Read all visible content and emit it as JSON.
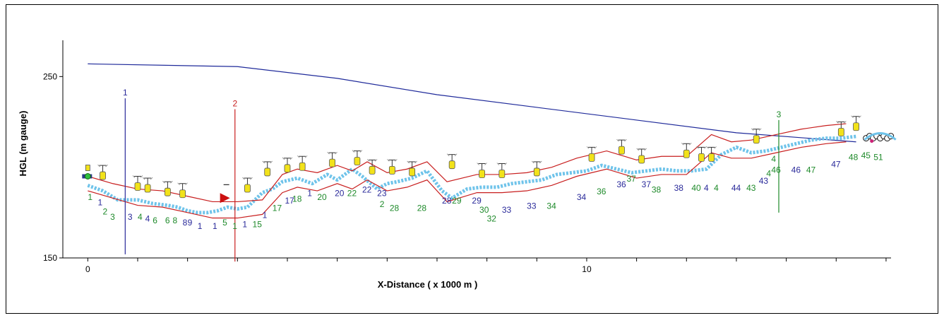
{
  "chart_data": {
    "type": "line",
    "xlabel": "X-Distance ( x 1000 m )",
    "ylabel": "HGL  (m gauge)",
    "xlim": [
      -0.5,
      16.1
    ],
    "ylim": [
      150,
      270
    ],
    "x_ticks": [
      0,
      10
    ],
    "y_ticks": [
      150,
      250
    ],
    "colors": {
      "hgl": "#1f2a9a",
      "profile": "#c81e1e",
      "pipe": "#6ec3ea",
      "label_blue": "#2a2a9a",
      "label_green": "#1e8a2a",
      "valve": "#f2e21a",
      "marker_red": "#cc1111"
    },
    "series": [
      {
        "name": "",
        "kind": "hgl",
        "x": [
          0,
          3,
          5,
          7,
          9,
          11,
          13,
          15.4
        ],
        "y": [
          257,
          255.5,
          249,
          240,
          233,
          226,
          219,
          214
        ]
      },
      {
        "name": "",
        "kind": "pipe",
        "x": [
          0,
          0.3,
          0.6,
          1.0,
          1.3,
          1.6,
          1.8,
          2.0,
          2.2,
          2.4,
          2.6,
          2.8,
          3.0,
          3.2,
          3.5,
          3.7,
          3.9,
          4.2,
          4.5,
          4.8,
          5.0,
          5.3,
          5.5,
          5.8,
          6.0,
          6.2,
          6.5,
          6.8,
          7.1,
          7.3,
          7.6,
          7.9,
          8.2,
          8.5,
          8.8,
          9.1,
          9.4,
          9.7,
          10.0,
          10.3,
          10.6,
          10.9,
          11.2,
          11.5,
          11.8,
          12.1,
          12.4,
          12.7,
          13.0,
          13.3,
          13.6,
          13.9,
          14.2,
          14.5,
          14.8,
          15.1,
          15.4
        ],
        "y": [
          190,
          187,
          182,
          182,
          180,
          179,
          178,
          176,
          175,
          175,
          176,
          178,
          177,
          178,
          186,
          188,
          192,
          194,
          191,
          196,
          193,
          199,
          195,
          188,
          191,
          192,
          194,
          198,
          187,
          183,
          188,
          189,
          189,
          191,
          192,
          193,
          196,
          197,
          198,
          201,
          199,
          197,
          198,
          199,
          198,
          198,
          199,
          207,
          211,
          208,
          209,
          211,
          213,
          215,
          216,
          216,
          217
        ]
      },
      {
        "name": "",
        "kind": "profile_upper",
        "x": [
          0,
          0.5,
          1.0,
          1.5,
          2.0,
          2.5,
          3.0,
          3.5,
          3.9,
          4.2,
          4.6,
          5.0,
          5.3,
          5.6,
          6.0,
          6.4,
          6.8,
          7.2,
          7.8,
          8.3,
          8.8,
          9.3,
          9.8,
          10.4,
          11.0,
          11.5,
          12.0,
          12.5,
          12.9,
          13.3,
          13.8,
          14.3,
          14.8,
          15.2
        ],
        "y": [
          195,
          191,
          188,
          187,
          184,
          181,
          181,
          182,
          196,
          199,
          197,
          201,
          198,
          203,
          197,
          199,
          203,
          192,
          196,
          196,
          197,
          200,
          205,
          209,
          204,
          206,
          206,
          218,
          214,
          215,
          218,
          221,
          223,
          224
        ]
      },
      {
        "name": "",
        "kind": "profile_lower",
        "x": [
          0,
          0.5,
          1.0,
          1.5,
          2.0,
          2.5,
          3.0,
          3.5,
          3.9,
          4.2,
          4.6,
          5.0,
          5.3,
          5.6,
          6.0,
          6.4,
          6.8,
          7.2,
          7.8,
          8.3,
          8.8,
          9.3,
          9.8,
          10.4,
          11.0,
          11.5,
          12.0,
          12.5,
          12.9,
          13.3,
          13.8,
          14.3,
          14.8,
          15.2
        ],
        "y": [
          187,
          183,
          179,
          178,
          175,
          172,
          172,
          174,
          186,
          189,
          187,
          191,
          188,
          193,
          187,
          189,
          193,
          181,
          186,
          186,
          187,
          190,
          195,
          199,
          194,
          196,
          196,
          208,
          205,
          205,
          208,
          211,
          213,
          214
        ]
      }
    ],
    "vertical_markers": [
      {
        "label": "1",
        "x": 0.75,
        "y_top": 238,
        "y_bottom": 152,
        "color": "#2a2a9a"
      },
      {
        "label": "2",
        "x": 2.95,
        "y_top": 232,
        "y_bottom": 148,
        "color": "#c81e1e"
      },
      {
        "label": "3",
        "x": 13.85,
        "y_top": 226,
        "y_bottom": 175,
        "color": "#1e8a2a"
      }
    ],
    "valves": [
      {
        "x": 0.3,
        "y": 194
      },
      {
        "x": 1.0,
        "y": 188
      },
      {
        "x": 1.2,
        "y": 187
      },
      {
        "x": 1.6,
        "y": 185
      },
      {
        "x": 1.9,
        "y": 184
      },
      {
        "x": 3.2,
        "y": 187
      },
      {
        "x": 3.6,
        "y": 196
      },
      {
        "x": 4.0,
        "y": 198
      },
      {
        "x": 4.3,
        "y": 199
      },
      {
        "x": 4.9,
        "y": 201
      },
      {
        "x": 5.4,
        "y": 202
      },
      {
        "x": 5.7,
        "y": 197
      },
      {
        "x": 6.1,
        "y": 197
      },
      {
        "x": 6.5,
        "y": 196
      },
      {
        "x": 7.3,
        "y": 200
      },
      {
        "x": 7.9,
        "y": 195
      },
      {
        "x": 8.3,
        "y": 195
      },
      {
        "x": 9.0,
        "y": 196
      },
      {
        "x": 10.1,
        "y": 204
      },
      {
        "x": 10.7,
        "y": 208
      },
      {
        "x": 11.1,
        "y": 203
      },
      {
        "x": 12.0,
        "y": 206
      },
      {
        "x": 12.3,
        "y": 204
      },
      {
        "x": 12.5,
        "y": 204
      },
      {
        "x": 13.4,
        "y": 214
      },
      {
        "x": 15.1,
        "y": 218
      },
      {
        "x": 15.4,
        "y": 221
      }
    ],
    "node_labels": [
      {
        "t": "1",
        "x": 0.0,
        "y": 182,
        "c": "g"
      },
      {
        "t": "1",
        "x": 0.2,
        "y": 179,
        "c": "b"
      },
      {
        "t": "2",
        "x": 0.3,
        "y": 174,
        "c": "g"
      },
      {
        "t": "3",
        "x": 0.45,
        "y": 171,
        "c": "g"
      },
      {
        "t": "3",
        "x": 0.8,
        "y": 171,
        "c": "b"
      },
      {
        "t": "4",
        "x": 1.0,
        "y": 171,
        "c": "g"
      },
      {
        "t": "4",
        "x": 1.15,
        "y": 170,
        "c": "b"
      },
      {
        "t": "6",
        "x": 1.3,
        "y": 169,
        "c": "g"
      },
      {
        "t": "6",
        "x": 1.55,
        "y": 169,
        "c": "g"
      },
      {
        "t": "8",
        "x": 1.7,
        "y": 169,
        "c": "g"
      },
      {
        "t": "8",
        "x": 1.9,
        "y": 168,
        "c": "b"
      },
      {
        "t": "9",
        "x": 2.0,
        "y": 168,
        "c": "b"
      },
      {
        "t": "1",
        "x": 2.2,
        "y": 166,
        "c": "b"
      },
      {
        "t": "1",
        "x": 2.5,
        "y": 166,
        "c": "b"
      },
      {
        "t": "5",
        "x": 2.7,
        "y": 168,
        "c": "g"
      },
      {
        "t": "1",
        "x": 2.9,
        "y": 166,
        "c": "g"
      },
      {
        "t": "1",
        "x": 3.1,
        "y": 167,
        "c": "b"
      },
      {
        "t": "15",
        "x": 3.3,
        "y": 167,
        "c": "g"
      },
      {
        "t": "1",
        "x": 3.5,
        "y": 172,
        "c": "b"
      },
      {
        "t": "17",
        "x": 3.7,
        "y": 176,
        "c": "g"
      },
      {
        "t": "17",
        "x": 3.95,
        "y": 180,
        "c": "b"
      },
      {
        "t": "18",
        "x": 4.1,
        "y": 181,
        "c": "g"
      },
      {
        "t": "1",
        "x": 4.4,
        "y": 184,
        "c": "b"
      },
      {
        "t": "20",
        "x": 4.6,
        "y": 182,
        "c": "g"
      },
      {
        "t": "20",
        "x": 4.95,
        "y": 184,
        "c": "b"
      },
      {
        "t": "22",
        "x": 5.2,
        "y": 184,
        "c": "g"
      },
      {
        "t": "22",
        "x": 5.5,
        "y": 186,
        "c": "b"
      },
      {
        "t": "23",
        "x": 5.8,
        "y": 184,
        "c": "b"
      },
      {
        "t": "2",
        "x": 5.85,
        "y": 178,
        "c": "g"
      },
      {
        "t": "28",
        "x": 6.05,
        "y": 176,
        "c": "g"
      },
      {
        "t": "28",
        "x": 6.6,
        "y": 176,
        "c": "g"
      },
      {
        "t": "28",
        "x": 7.1,
        "y": 180,
        "c": "b"
      },
      {
        "t": "29",
        "x": 7.3,
        "y": 180,
        "c": "g"
      },
      {
        "t": "29",
        "x": 7.7,
        "y": 180,
        "c": "b"
      },
      {
        "t": "30",
        "x": 7.85,
        "y": 175,
        "c": "g"
      },
      {
        "t": "32",
        "x": 8.0,
        "y": 170,
        "c": "g"
      },
      {
        "t": "33",
        "x": 8.3,
        "y": 175,
        "c": "b"
      },
      {
        "t": "33",
        "x": 8.8,
        "y": 177,
        "c": "b"
      },
      {
        "t": "34",
        "x": 9.2,
        "y": 177,
        "c": "g"
      },
      {
        "t": "34",
        "x": 9.8,
        "y": 182,
        "c": "b"
      },
      {
        "t": "36",
        "x": 10.2,
        "y": 185,
        "c": "g"
      },
      {
        "t": "36",
        "x": 10.6,
        "y": 189,
        "c": "b"
      },
      {
        "t": "37",
        "x": 10.8,
        "y": 192,
        "c": "g"
      },
      {
        "t": "37",
        "x": 11.1,
        "y": 189,
        "c": "b"
      },
      {
        "t": "38",
        "x": 11.3,
        "y": 186,
        "c": "g"
      },
      {
        "t": "38",
        "x": 11.75,
        "y": 187,
        "c": "b"
      },
      {
        "t": "40",
        "x": 12.1,
        "y": 187,
        "c": "g"
      },
      {
        "t": "4",
        "x": 12.35,
        "y": 187,
        "c": "b"
      },
      {
        "t": "4",
        "x": 12.55,
        "y": 187,
        "c": "g"
      },
      {
        "t": "44",
        "x": 12.9,
        "y": 187,
        "c": "b"
      },
      {
        "t": "43",
        "x": 13.2,
        "y": 187,
        "c": "g"
      },
      {
        "t": "43",
        "x": 13.45,
        "y": 191,
        "c": "b"
      },
      {
        "t": "4",
        "x": 13.6,
        "y": 195,
        "c": "g"
      },
      {
        "t": "4",
        "x": 13.7,
        "y": 203,
        "c": "g"
      },
      {
        "t": "46",
        "x": 13.7,
        "y": 197,
        "c": "g"
      },
      {
        "t": "46",
        "x": 14.1,
        "y": 197,
        "c": "b"
      },
      {
        "t": "47",
        "x": 14.4,
        "y": 197,
        "c": "g"
      },
      {
        "t": "47",
        "x": 14.9,
        "y": 200,
        "c": "b"
      },
      {
        "t": "48",
        "x": 15.25,
        "y": 204,
        "c": "g"
      },
      {
        "t": "45",
        "x": 15.5,
        "y": 205,
        "c": "g"
      },
      {
        "t": "51",
        "x": 15.75,
        "y": 204,
        "c": "g"
      }
    ]
  }
}
